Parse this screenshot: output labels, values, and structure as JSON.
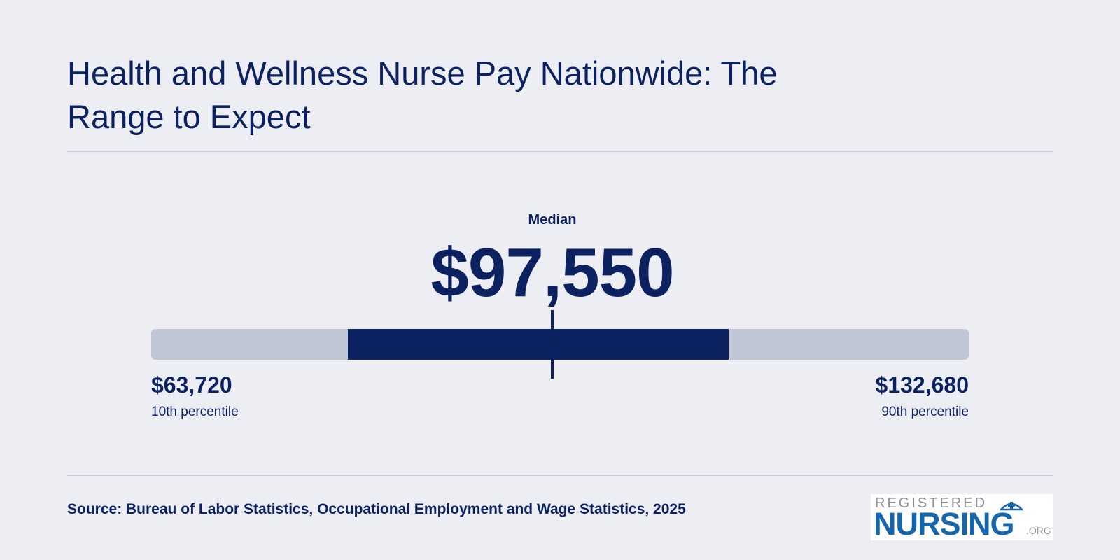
{
  "title": "Health and Wellness Nurse Pay Nationwide: The Range to Expect",
  "chart_data": {
    "type": "range",
    "min": 63720,
    "max": 132680,
    "median": 97550,
    "low": {
      "value": "$63,720",
      "label": "10th percentile"
    },
    "high": {
      "value": "$132,680",
      "label": "90th percentile"
    },
    "median_display": {
      "label": "Median",
      "value": "$97,550"
    },
    "highlight_range_fraction": [
      0.241,
      0.706
    ],
    "median_fraction": 0.491,
    "colors": {
      "track": "#c1c6d7",
      "range": "#0c2160",
      "text": "#0c2160"
    }
  },
  "source": "Source: Bureau of Labor Statistics, Occupational Employment and Wage Statistics, 2025",
  "logo": {
    "top": "REGISTERED",
    "main": "NURSING",
    "suffix": ".ORG"
  }
}
